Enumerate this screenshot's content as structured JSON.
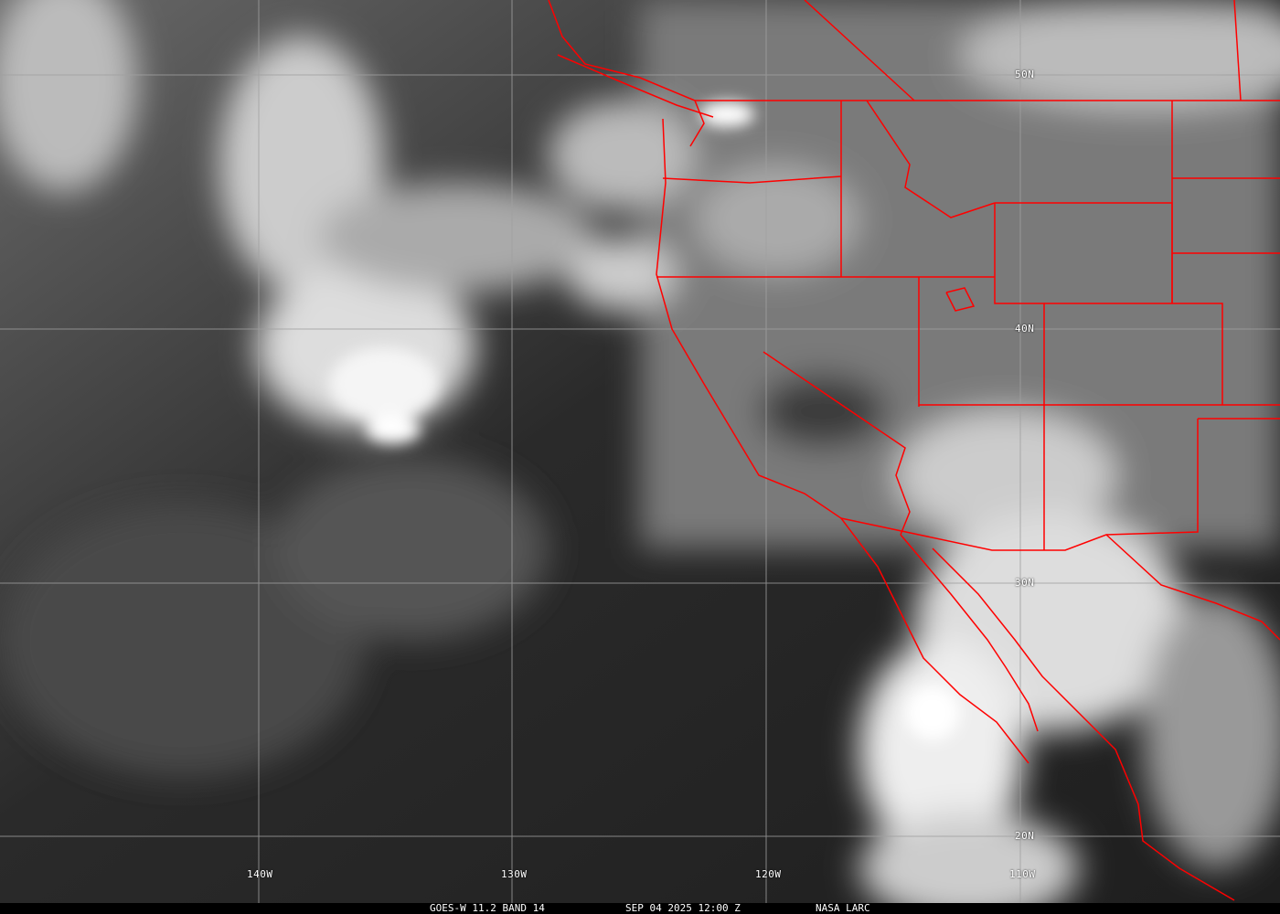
{
  "caption": {
    "satellite": "GOES-W 11.2 BAND 14",
    "datetime": "SEP 04 2025 12:00 Z",
    "source": "NASA LARC"
  },
  "grid": {
    "latitudes": [
      "50N",
      "40N",
      "30N",
      "20N"
    ],
    "longitudes": [
      "140W",
      "130W",
      "120W",
      "110W"
    ]
  },
  "colors": {
    "borders": "#ff0000",
    "grid": "#a0a0a0",
    "caption_bg": "#000000"
  },
  "imagery": "infrared satellite image, grayscale"
}
